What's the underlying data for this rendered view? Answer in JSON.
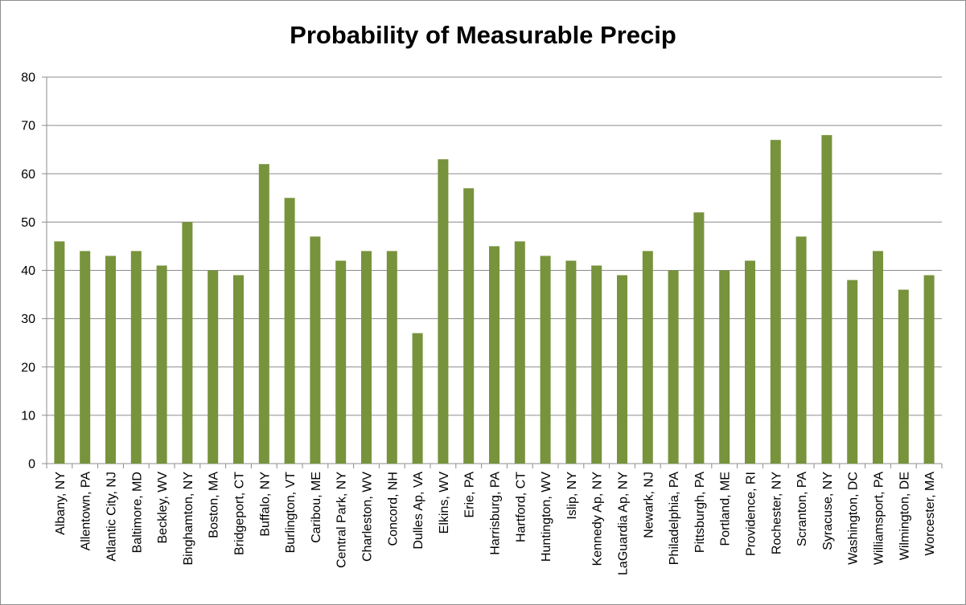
{
  "chart_data": {
    "type": "bar",
    "title": "Probability of Measurable Precip",
    "xlabel": "",
    "ylabel": "",
    "ylim": [
      0,
      80
    ],
    "yticks": [
      "0",
      "10",
      "20",
      "30",
      "40",
      "50",
      "60",
      "70",
      "80"
    ],
    "grid": true,
    "legend": "none",
    "bar_color": "#77933c",
    "categories": [
      "Albany, NY",
      "Allentown, PA",
      "Atlantic City, NJ",
      "Baltimore, MD",
      "Beckley, WV",
      "Binghamton, NY",
      "Boston, MA",
      "Bridgeport, CT",
      "Buffalo, NY",
      "Burlington, VT",
      "Caribou, ME",
      "Central Park, NY",
      "Charleston, WV",
      "Concord, NH",
      "Dulles Ap, VA",
      "Elkins, WV",
      "Erie, PA",
      "Harrisburg, PA",
      "Hartford, CT",
      "Huntington, WV",
      "Islip, NY",
      "Kennedy Ap, NY",
      "LaGuardia Ap, NY",
      "Newark, NJ",
      "Philadelphia, PA",
      "Pittsburgh, PA",
      "Portland, ME",
      "Providence, RI",
      "Rochester, NY",
      "Scranton, PA",
      "Syracuse, NY",
      "Washington, DC",
      "Williamsport, PA",
      "Wilmington, DE",
      "Worcester, MA"
    ],
    "values": [
      46,
      44,
      43,
      44,
      41,
      50,
      40,
      39,
      62,
      55,
      47,
      42,
      44,
      44,
      27,
      63,
      57,
      45,
      46,
      43,
      42,
      41,
      39,
      44,
      40,
      52,
      40,
      42,
      67,
      47,
      68,
      38,
      44,
      36,
      39
    ]
  }
}
